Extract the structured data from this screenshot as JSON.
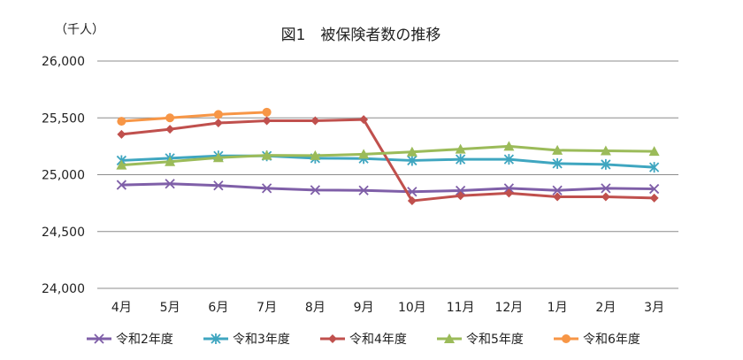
{
  "chart_data": {
    "type": "line",
    "title": "図1　被保険者数の推移",
    "unit_label": "（千人）",
    "categories": [
      "4月",
      "5月",
      "6月",
      "7月",
      "8月",
      "9月",
      "10月",
      "11月",
      "12月",
      "1月",
      "2月",
      "3月"
    ],
    "y_ticks": [
      "26,000",
      "25,500",
      "25,000",
      "24,500",
      "24,000"
    ],
    "ylim": [
      24000,
      26000
    ],
    "grid": "horizontal",
    "legend_position": "bottom",
    "series": [
      {
        "name": "令和2年度",
        "color": "#7f5fa8",
        "marker": "x",
        "values": [
          24910,
          24920,
          24905,
          24880,
          24865,
          24862,
          24850,
          24860,
          24880,
          24862,
          24880,
          24875
        ]
      },
      {
        "name": "令和3年度",
        "color": "#3fa6c0",
        "marker": "star",
        "values": [
          25125,
          25145,
          25165,
          25165,
          25145,
          25142,
          25125,
          25135,
          25135,
          25098,
          25090,
          25065
        ]
      },
      {
        "name": "令和4年度",
        "color": "#c0504d",
        "marker": "diamond",
        "values": [
          25355,
          25400,
          25455,
          25475,
          25475,
          25485,
          24770,
          24815,
          24838,
          24805,
          24805,
          24795
        ]
      },
      {
        "name": "令和5年度",
        "color": "#9bbb59",
        "marker": "triangle",
        "values": [
          25085,
          25115,
          25150,
          25170,
          25168,
          25180,
          25200,
          25225,
          25250,
          25215,
          25210,
          25205
        ]
      },
      {
        "name": "令和6年度",
        "color": "#f79646",
        "marker": "circle",
        "values": [
          25470,
          25500,
          25530,
          25550,
          null,
          null,
          null,
          null,
          null,
          null,
          null,
          null
        ]
      }
    ]
  }
}
